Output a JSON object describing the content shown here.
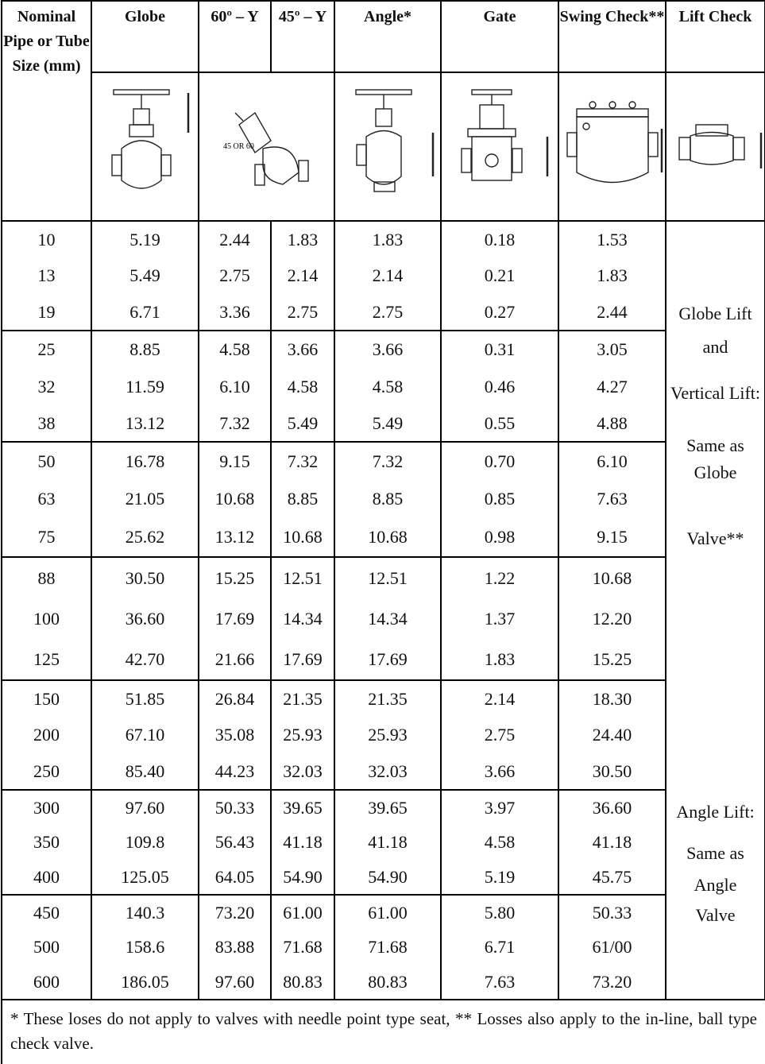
{
  "table": {
    "header": [
      "Nominal Pipe or Tube Size (mm)",
      "Globe",
      "60º – Y",
      "45º – Y",
      "Angle*",
      "Gate",
      "Swing Check**",
      "Lift Check"
    ],
    "rows": [
      [
        "10",
        "5.19",
        "2.44",
        "1.83",
        "1.83",
        "0.18",
        "1.53"
      ],
      [
        "13",
        "5.49",
        "2.75",
        "2.14",
        "2.14",
        "0.21",
        "1.83"
      ],
      [
        "19",
        "6.71",
        "3.36",
        "2.75",
        "2.75",
        "0.27",
        "2.44"
      ],
      [
        "25",
        "8.85",
        "4.58",
        "3.66",
        "3.66",
        "0.31",
        "3.05"
      ],
      [
        "32",
        "11.59",
        "6.10",
        "4.58",
        "4.58",
        "0.46",
        "4.27"
      ],
      [
        "38",
        "13.12",
        "7.32",
        "5.49",
        "5.49",
        "0.55",
        "4.88"
      ],
      [
        "50",
        "16.78",
        "9.15",
        "7.32",
        "7.32",
        "0.70",
        "6.10"
      ],
      [
        "63",
        "21.05",
        "10.68",
        "8.85",
        "8.85",
        "0.85",
        "7.63"
      ],
      [
        "75",
        "25.62",
        "13.12",
        "10.68",
        "10.68",
        "0.98",
        "9.15"
      ],
      [
        "88",
        "30.50",
        "15.25",
        "12.51",
        "12.51",
        "1.22",
        "10.68"
      ],
      [
        "100",
        "36.60",
        "17.69",
        "14.34",
        "14.34",
        "1.37",
        "12.20"
      ],
      [
        "125",
        "42.70",
        "21.66",
        "17.69",
        "17.69",
        "1.83",
        "15.25"
      ],
      [
        "150",
        "51.85",
        "26.84",
        "21.35",
        "21.35",
        "2.14",
        "18.30"
      ],
      [
        "200",
        "67.10",
        "35.08",
        "25.93",
        "25.93",
        "2.75",
        "24.40"
      ],
      [
        "250",
        "85.40",
        "44.23",
        "32.03",
        "32.03",
        "3.66",
        "30.50"
      ],
      [
        "300",
        "97.60",
        "50.33",
        "39.65",
        "39.65",
        "3.97",
        "36.60"
      ],
      [
        "350",
        "109.8",
        "56.43",
        "41.18",
        "41.18",
        "4.58",
        "41.18"
      ],
      [
        "400",
        "125.05",
        "64.05",
        "54.90",
        "54.90",
        "5.19",
        "45.75"
      ],
      [
        "450",
        "140.3",
        "73.20",
        "61.00",
        "61.00",
        "5.80",
        "50.33"
      ],
      [
        "500",
        "158.6",
        "83.88",
        "71.68",
        "71.68",
        "6.71",
        "61/00"
      ],
      [
        "600",
        "186.05",
        "97.60",
        "80.83",
        "80.83",
        "7.63",
        "73.20"
      ]
    ],
    "lift_check_notes": [
      "Globe Lift",
      "and",
      "Vertical Lift:",
      "Same as Globe",
      "Valve**",
      "Angle Lift:",
      "Same as",
      "Angle",
      "Valve"
    ],
    "footnote": "* These loses do not apply to valves with needle point type seat,  ** Losses also apply to the in-line, ball type check valve."
  }
}
